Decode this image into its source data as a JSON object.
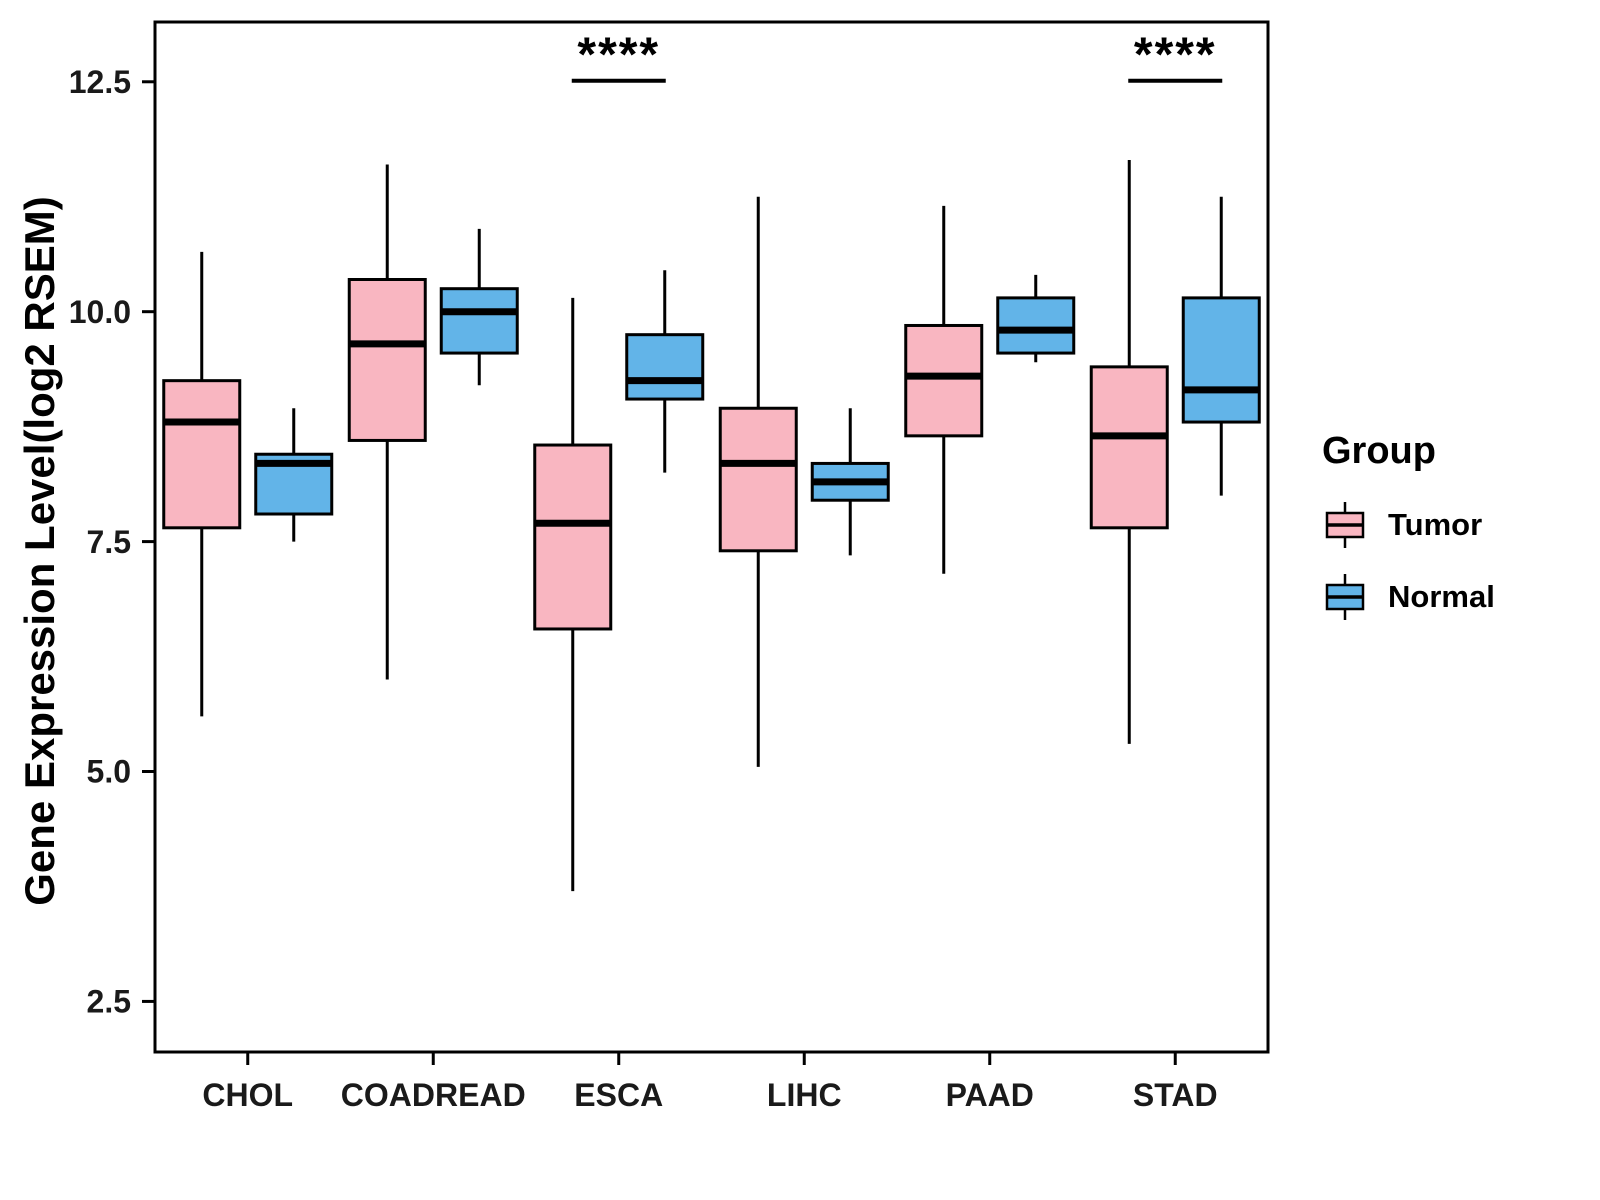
{
  "chart_data": {
    "type": "boxplot",
    "title": "",
    "xlabel": "",
    "ylabel": "Gene Expression Level(log2 RSEM)",
    "ylim": [
      1.95,
      13.15
    ],
    "yticks": [
      2.5,
      5.0,
      7.5,
      10.0,
      12.5
    ],
    "ytick_labels": [
      "2.5",
      "5.0",
      "7.5",
      "10.0",
      "12.5"
    ],
    "categories": [
      "CHOL",
      "COADREAD",
      "ESCA",
      "LIHC",
      "PAAD",
      "STAD"
    ],
    "grid": false,
    "panel_border_color": "#000000",
    "legend": {
      "title": "Group",
      "position": "right",
      "entries": [
        {
          "label": "Tumor",
          "color": "#F9B6C1"
        },
        {
          "label": "Normal",
          "color": "#62B4E8"
        }
      ]
    },
    "series": [
      {
        "name": "Tumor",
        "color": "#F9B6C1",
        "boxes": [
          {
            "category": "CHOL",
            "whisker_low": 5.6,
            "q1": 7.65,
            "median": 8.8,
            "q3": 9.25,
            "whisker_high": 10.65
          },
          {
            "category": "COADREAD",
            "whisker_low": 6.0,
            "q1": 8.6,
            "median": 9.65,
            "q3": 10.35,
            "whisker_high": 11.6
          },
          {
            "category": "ESCA",
            "whisker_low": 3.7,
            "q1": 6.55,
            "median": 7.7,
            "q3": 8.55,
            "whisker_high": 10.15
          },
          {
            "category": "LIHC",
            "whisker_low": 5.05,
            "q1": 7.4,
            "median": 8.35,
            "q3": 8.95,
            "whisker_high": 11.25
          },
          {
            "category": "PAAD",
            "whisker_low": 7.15,
            "q1": 8.65,
            "median": 9.3,
            "q3": 9.85,
            "whisker_high": 11.15
          },
          {
            "category": "STAD",
            "whisker_low": 5.3,
            "q1": 7.65,
            "median": 8.65,
            "q3": 9.4,
            "whisker_high": 11.65
          }
        ]
      },
      {
        "name": "Normal",
        "color": "#62B4E8",
        "boxes": [
          {
            "category": "CHOL",
            "whisker_low": 7.5,
            "q1": 7.8,
            "median": 8.35,
            "q3": 8.45,
            "whisker_high": 8.95
          },
          {
            "category": "COADREAD",
            "whisker_low": 9.2,
            "q1": 9.55,
            "median": 10.0,
            "q3": 10.25,
            "whisker_high": 10.9
          },
          {
            "category": "ESCA",
            "whisker_low": 8.25,
            "q1": 9.05,
            "median": 9.25,
            "q3": 9.75,
            "whisker_high": 10.45
          },
          {
            "category": "LIHC",
            "whisker_low": 7.35,
            "q1": 7.95,
            "median": 8.15,
            "q3": 8.35,
            "whisker_high": 8.95
          },
          {
            "category": "PAAD",
            "whisker_low": 9.45,
            "q1": 9.55,
            "median": 9.8,
            "q3": 10.15,
            "whisker_high": 10.4
          },
          {
            "category": "STAD",
            "whisker_low": 8.0,
            "q1": 8.8,
            "median": 9.15,
            "q3": 10.15,
            "whisker_high": 11.25
          }
        ]
      }
    ],
    "annotations": [
      {
        "category": "ESCA",
        "text": "****",
        "y": 12.62,
        "underline": true
      },
      {
        "category": "STAD",
        "text": "****",
        "y": 12.62,
        "underline": true
      }
    ]
  }
}
